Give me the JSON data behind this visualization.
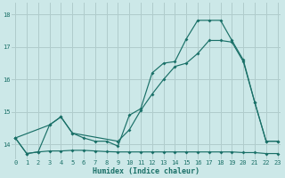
{
  "xlabel": "Humidex (Indice chaleur)",
  "bg_color": "#cce8e8",
  "grid_color": "#b0cccc",
  "line_color": "#1a7068",
  "xlim": [
    -0.3,
    23.3
  ],
  "ylim": [
    13.55,
    18.35
  ],
  "yticks": [
    14,
    15,
    16,
    17,
    18
  ],
  "xticks": [
    0,
    1,
    2,
    3,
    4,
    5,
    6,
    7,
    8,
    9,
    10,
    11,
    12,
    13,
    14,
    15,
    16,
    17,
    18,
    19,
    20,
    21,
    22,
    23
  ],
  "line1_x": [
    0,
    1,
    2,
    3,
    4,
    5,
    6,
    7,
    8,
    9,
    10,
    11,
    12,
    13,
    14,
    15,
    16,
    17,
    18,
    19,
    20,
    21,
    22,
    23
  ],
  "line1_y": [
    14.2,
    13.72,
    13.77,
    13.8,
    13.8,
    13.82,
    13.82,
    13.8,
    13.78,
    13.77,
    13.77,
    13.77,
    13.77,
    13.77,
    13.77,
    13.77,
    13.77,
    13.77,
    13.77,
    13.77,
    13.75,
    13.75,
    13.72,
    13.72
  ],
  "line2_x": [
    0,
    3,
    4,
    5,
    9,
    10,
    11,
    12,
    13,
    14,
    15,
    16,
    17,
    18,
    19,
    20,
    21,
    22,
    23
  ],
  "line2_y": [
    14.2,
    14.6,
    14.85,
    14.35,
    14.1,
    14.45,
    15.05,
    15.55,
    16.0,
    16.4,
    16.5,
    16.8,
    17.2,
    17.2,
    17.15,
    16.55,
    15.3,
    14.1,
    14.1
  ],
  "line3_x": [
    0,
    1,
    2,
    3,
    4,
    5,
    6,
    7,
    8,
    9,
    10,
    11,
    12,
    13,
    14,
    15,
    16,
    17,
    18,
    19,
    20,
    21,
    22,
    23
  ],
  "line3_y": [
    14.2,
    13.72,
    13.77,
    14.6,
    14.85,
    14.35,
    14.2,
    14.1,
    14.1,
    13.95,
    14.9,
    15.1,
    16.2,
    16.5,
    16.55,
    17.25,
    17.82,
    17.82,
    17.82,
    17.2,
    16.6,
    15.3,
    14.1,
    14.1
  ]
}
